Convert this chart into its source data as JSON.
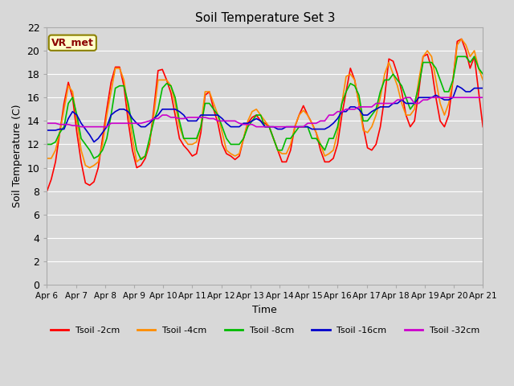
{
  "title": "Soil Temperature Set 3",
  "xlabel": "Time",
  "ylabel": "Soil Temperature (C)",
  "ylim": [
    0,
    22
  ],
  "yticks": [
    0,
    2,
    4,
    6,
    8,
    10,
    12,
    14,
    16,
    18,
    20,
    22
  ],
  "xtick_labels": [
    "Apr 6",
    "Apr 7",
    "Apr 8",
    "Apr 9",
    "Apr 10",
    "Apr 11",
    "Apr 12",
    "Apr 13",
    "Apr 14",
    "Apr 15",
    "Apr 16",
    "Apr 17",
    "Apr 18",
    "Apr 19",
    "Apr 20",
    "Apr 21"
  ],
  "background_color": "#d8d8d8",
  "plot_bg_color": "#d8d8d8",
  "annotation_text": "VR_met",
  "annotation_bg": "#ffffcc",
  "annotation_border": "#8b8000",
  "tsoil_2cm": [
    8.0,
    9.0,
    10.5,
    13.0,
    15.5,
    17.3,
    16.0,
    13.0,
    10.5,
    8.7,
    8.5,
    8.8,
    10.0,
    12.5,
    15.0,
    17.3,
    18.6,
    18.6,
    17.0,
    14.0,
    11.5,
    10.0,
    10.2,
    10.8,
    12.0,
    15.0,
    18.3,
    18.4,
    17.5,
    16.4,
    14.5,
    12.5,
    11.9,
    11.5,
    11.0,
    11.2,
    13.0,
    16.2,
    16.5,
    15.0,
    13.8,
    12.0,
    11.2,
    11.0,
    10.7,
    11.0,
    12.5,
    13.8,
    14.3,
    14.5,
    14.0,
    13.8,
    13.5,
    12.5,
    11.5,
    10.5,
    10.5,
    11.5,
    13.5,
    14.5,
    15.3,
    14.5,
    13.8,
    13.0,
    11.5,
    10.5,
    10.5,
    10.8,
    12.0,
    14.5,
    16.5,
    18.5,
    17.5,
    15.5,
    13.5,
    11.7,
    11.5,
    12.0,
    13.5,
    16.0,
    19.3,
    19.1,
    18.0,
    16.5,
    14.5,
    13.5,
    14.0,
    16.5,
    19.5,
    19.7,
    18.5,
    16.0,
    14.0,
    13.5,
    14.5,
    17.5,
    20.8,
    21.0,
    20.0,
    18.5,
    19.5,
    16.5,
    13.5
  ],
  "tsoil_4cm": [
    10.8,
    10.8,
    11.5,
    13.0,
    15.0,
    17.0,
    16.5,
    14.0,
    11.5,
    10.2,
    10.0,
    10.2,
    10.5,
    12.0,
    14.5,
    16.5,
    18.5,
    18.5,
    17.5,
    15.0,
    12.5,
    10.5,
    10.8,
    11.0,
    12.2,
    14.5,
    17.5,
    17.5,
    17.5,
    17.0,
    15.5,
    13.5,
    12.5,
    12.0,
    12.0,
    12.2,
    13.5,
    16.5,
    16.5,
    15.5,
    14.5,
    13.0,
    11.5,
    11.2,
    11.0,
    11.2,
    12.5,
    14.0,
    14.8,
    15.0,
    14.5,
    14.0,
    13.5,
    12.5,
    11.5,
    11.2,
    11.2,
    12.0,
    13.5,
    14.5,
    14.9,
    14.5,
    13.8,
    13.0,
    12.0,
    11.0,
    11.2,
    11.5,
    13.0,
    15.5,
    17.8,
    18.0,
    17.5,
    15.5,
    13.2,
    13.0,
    13.5,
    14.5,
    16.0,
    18.0,
    19.0,
    18.0,
    17.0,
    15.5,
    14.5,
    14.5,
    15.0,
    17.5,
    19.5,
    20.0,
    19.5,
    17.5,
    15.5,
    14.5,
    15.5,
    17.5,
    20.5,
    21.0,
    20.5,
    19.5,
    20.0,
    18.5,
    17.5
  ],
  "tsoil_8cm": [
    12.0,
    12.0,
    12.2,
    13.0,
    13.5,
    15.5,
    16.0,
    14.5,
    12.5,
    12.0,
    11.5,
    10.8,
    11.0,
    11.5,
    12.5,
    14.5,
    16.8,
    17.0,
    17.0,
    15.5,
    13.5,
    11.5,
    10.7,
    11.0,
    12.5,
    14.0,
    15.0,
    16.8,
    17.2,
    17.0,
    16.0,
    14.0,
    12.5,
    12.5,
    12.5,
    12.5,
    13.5,
    15.5,
    15.5,
    15.0,
    14.5,
    13.5,
    12.5,
    12.0,
    12.0,
    12.0,
    12.5,
    13.5,
    14.0,
    14.5,
    14.5,
    13.5,
    13.5,
    12.5,
    11.5,
    11.5,
    12.5,
    12.5,
    13.0,
    13.5,
    13.5,
    13.5,
    12.5,
    12.5,
    12.0,
    11.5,
    12.5,
    12.5,
    13.5,
    15.5,
    16.5,
    17.2,
    17.0,
    16.2,
    14.0,
    14.0,
    14.5,
    15.0,
    16.5,
    17.5,
    17.5,
    18.0,
    17.5,
    17.0,
    16.0,
    15.0,
    15.5,
    17.0,
    19.0,
    19.0,
    19.0,
    18.5,
    17.5,
    16.5,
    16.5,
    17.5,
    19.5,
    19.5,
    19.5,
    19.0,
    19.5,
    18.5,
    18.0
  ],
  "tsoil_16cm": [
    13.2,
    13.2,
    13.2,
    13.3,
    13.3,
    14.2,
    14.8,
    14.5,
    13.8,
    13.3,
    12.8,
    12.2,
    12.5,
    13.0,
    13.5,
    14.5,
    14.8,
    15.0,
    15.0,
    14.8,
    14.2,
    13.8,
    13.5,
    13.5,
    13.8,
    14.2,
    14.5,
    15.0,
    15.0,
    15.0,
    15.0,
    14.8,
    14.5,
    14.0,
    14.0,
    14.0,
    14.5,
    14.5,
    14.5,
    14.5,
    14.5,
    14.2,
    13.8,
    13.5,
    13.5,
    13.5,
    13.8,
    13.8,
    14.0,
    14.2,
    14.0,
    13.5,
    13.5,
    13.5,
    13.3,
    13.3,
    13.5,
    13.5,
    13.5,
    13.5,
    13.5,
    13.5,
    13.3,
    13.3,
    13.3,
    13.3,
    13.5,
    13.8,
    14.2,
    14.8,
    14.8,
    15.2,
    15.2,
    15.0,
    14.5,
    14.5,
    14.8,
    15.0,
    15.2,
    15.2,
    15.2,
    15.5,
    15.5,
    15.8,
    15.5,
    15.5,
    15.5,
    16.0,
    16.0,
    16.0,
    16.0,
    16.2,
    16.0,
    15.8,
    15.8,
    16.0,
    17.0,
    16.8,
    16.5,
    16.5,
    16.8,
    16.8,
    16.8
  ],
  "tsoil_32cm": [
    13.8,
    13.8,
    13.8,
    13.7,
    13.7,
    13.7,
    13.6,
    13.6,
    13.5,
    13.5,
    13.5,
    13.5,
    13.5,
    13.5,
    13.5,
    13.8,
    13.8,
    13.8,
    13.8,
    13.8,
    13.8,
    13.8,
    13.8,
    13.9,
    14.0,
    14.2,
    14.2,
    14.5,
    14.5,
    14.3,
    14.3,
    14.2,
    14.2,
    14.3,
    14.3,
    14.3,
    14.3,
    14.3,
    14.2,
    14.2,
    14.0,
    14.0,
    14.0,
    14.0,
    14.0,
    13.8,
    13.7,
    13.7,
    13.7,
    13.5,
    13.5,
    13.5,
    13.5,
    13.5,
    13.5,
    13.5,
    13.5,
    13.5,
    13.5,
    13.5,
    13.5,
    13.8,
    13.8,
    13.8,
    14.0,
    14.0,
    14.5,
    14.5,
    14.8,
    14.8,
    15.0,
    15.0,
    15.0,
    15.2,
    15.2,
    15.2,
    15.2,
    15.5,
    15.5,
    15.5,
    15.5,
    15.5,
    15.8,
    15.8,
    16.0,
    16.0,
    15.5,
    15.5,
    15.8,
    15.8,
    16.0,
    16.0,
    16.0,
    16.0,
    16.0,
    16.0,
    16.0,
    16.0,
    16.0,
    16.0,
    16.0,
    16.0,
    16.0
  ]
}
